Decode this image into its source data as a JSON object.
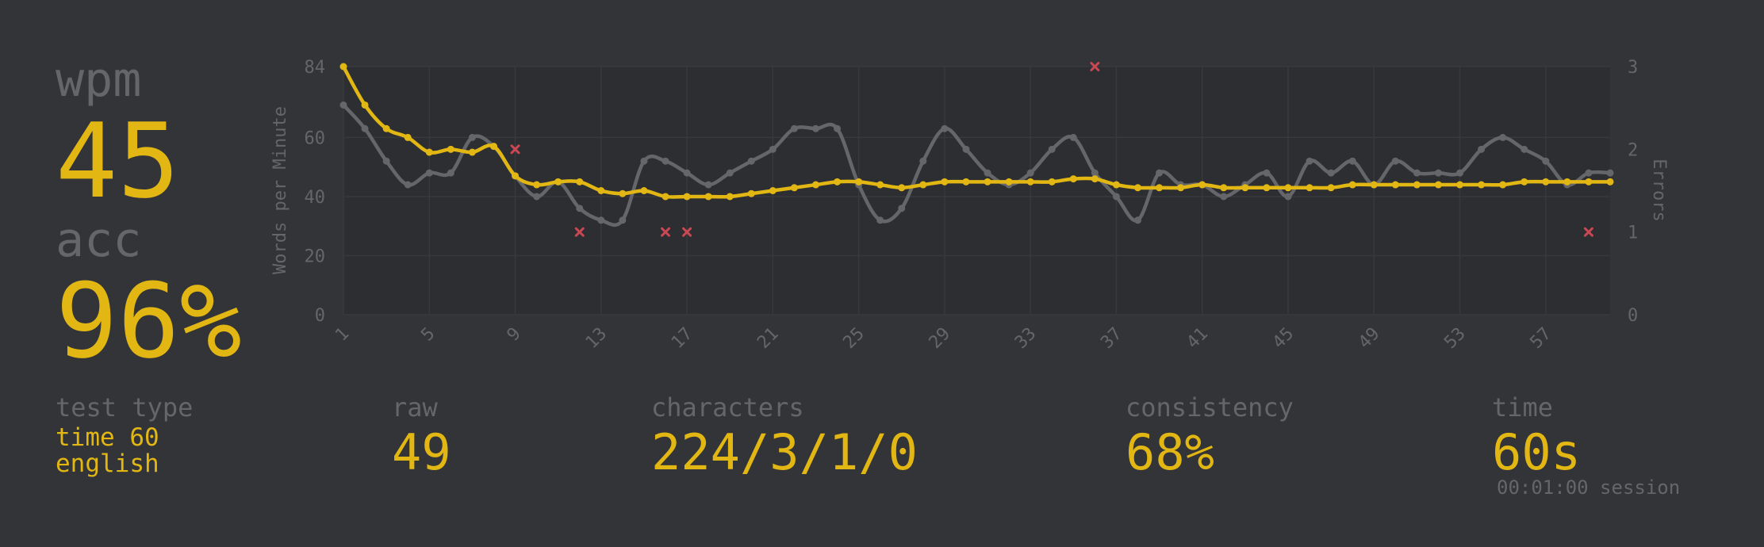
{
  "stats": {
    "wpm_label": "wpm",
    "wpm": "45",
    "acc_label": "acc",
    "acc": "96%"
  },
  "details": {
    "test_type_label": "test type",
    "test_type_mode": "time 60",
    "test_type_language": "english",
    "raw_label": "raw",
    "raw": "49",
    "characters_label": "characters",
    "characters": "224/3/1/0",
    "consistency_label": "consistency",
    "consistency": "68%",
    "time_label": "time",
    "time": "60s",
    "session": "00:01:00 session"
  },
  "colors": {
    "background": "#323437",
    "accent": "#e2b714",
    "sub": "#646669",
    "error": "#ca4754"
  },
  "chart_data": {
    "type": "line",
    "ylabel": "Words per Minute",
    "y2label": "Errors",
    "x": [
      1,
      2,
      3,
      4,
      5,
      6,
      7,
      8,
      9,
      10,
      11,
      12,
      13,
      14,
      15,
      16,
      17,
      18,
      19,
      20,
      21,
      22,
      23,
      24,
      25,
      26,
      27,
      28,
      29,
      30,
      31,
      32,
      33,
      34,
      35,
      36,
      37,
      38,
      39,
      40,
      41,
      42,
      43,
      44,
      45,
      46,
      47,
      48,
      49,
      50,
      51,
      52,
      53,
      54,
      55,
      56,
      57,
      58,
      59,
      60
    ],
    "xlim": [
      1,
      60
    ],
    "xticks": [
      "1",
      "5",
      "9",
      "13",
      "17",
      "21",
      "25",
      "29",
      "33",
      "37",
      "41",
      "45",
      "49",
      "53",
      "57"
    ],
    "ylim": [
      0,
      84
    ],
    "yticks": [
      "0",
      "20",
      "40",
      "60",
      "84"
    ],
    "y2lim": [
      0,
      3
    ],
    "y2ticks": [
      "0",
      "1",
      "2",
      "3"
    ],
    "series": [
      {
        "name": "raw",
        "color": "#646669",
        "values": [
          71,
          63,
          52,
          44,
          48,
          48,
          60,
          57,
          47,
          40,
          45,
          36,
          32,
          32,
          52,
          52,
          48,
          44,
          48,
          52,
          56,
          63,
          63,
          63,
          44,
          32,
          36,
          52,
          63,
          56,
          48,
          44,
          48,
          56,
          60,
          48,
          40,
          32,
          48,
          44,
          44,
          40,
          44,
          48,
          40,
          52,
          48,
          52,
          44,
          52,
          48,
          48,
          48,
          56,
          60,
          56,
          52,
          44,
          48,
          48
        ]
      },
      {
        "name": "wpm",
        "color": "#e2b714",
        "values": [
          84,
          71,
          63,
          60,
          55,
          56,
          55,
          57,
          47,
          44,
          45,
          45,
          42,
          41,
          42,
          40,
          40,
          40,
          40,
          41,
          42,
          43,
          44,
          45,
          45,
          44,
          43,
          44,
          45,
          45,
          45,
          45,
          45,
          45,
          46,
          46,
          44,
          43,
          43,
          43,
          44,
          43,
          43,
          43,
          43,
          43,
          43,
          44,
          44,
          44,
          44,
          44,
          44,
          44,
          44,
          45,
          45,
          45,
          45,
          45
        ]
      }
    ],
    "errors": [
      {
        "x": 9,
        "count": 2
      },
      {
        "x": 12,
        "count": 1
      },
      {
        "x": 16,
        "count": 1
      },
      {
        "x": 17,
        "count": 1
      },
      {
        "x": 36,
        "count": 3
      },
      {
        "x": 59,
        "count": 1
      }
    ]
  }
}
